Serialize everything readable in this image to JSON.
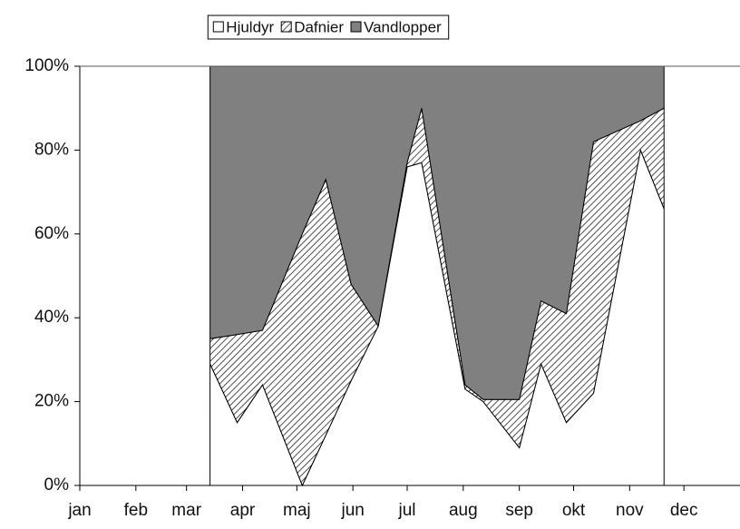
{
  "chart_data": {
    "type": "stacked_area",
    "x": [
      72,
      87,
      101,
      123,
      136,
      150,
      165,
      181,
      189,
      213,
      223,
      243,
      255,
      269,
      284,
      310,
      323
    ],
    "series": [
      {
        "name": "Hjuldyr",
        "color": "#ffffff",
        "values": [
          29,
          15,
          24,
          0,
          12,
          25,
          38,
          76,
          77,
          23,
          20,
          9,
          29,
          15,
          22,
          80,
          66
        ]
      },
      {
        "name": "Dafnier",
        "color": "#ffffff",
        "hatch": true,
        "values": [
          6,
          21,
          13,
          60,
          61,
          23,
          0,
          1,
          13,
          1,
          0.5,
          11.5,
          15,
          26,
          60,
          7,
          24
        ]
      },
      {
        "name": "Vandlopper",
        "color": "#808080",
        "values": [
          65,
          64,
          63,
          40,
          27,
          52,
          62,
          23,
          10,
          76,
          79.5,
          79.5,
          56,
          59,
          18,
          13,
          10
        ]
      }
    ],
    "xlim": [
      0,
      365
    ],
    "xticks": [
      {
        "value": 0,
        "label": "jan"
      },
      {
        "value": 31,
        "label": "feb"
      },
      {
        "value": 59,
        "label": "mar"
      },
      {
        "value": 90,
        "label": "apr"
      },
      {
        "value": 120,
        "label": "maj"
      },
      {
        "value": 151,
        "label": "jun"
      },
      {
        "value": 181,
        "label": "jul"
      },
      {
        "value": 212,
        "label": "aug"
      },
      {
        "value": 243,
        "label": "sep"
      },
      {
        "value": 273,
        "label": "okt"
      },
      {
        "value": 304,
        "label": "nov"
      },
      {
        "value": 334,
        "label": "dec"
      }
    ],
    "ylim": [
      0,
      100
    ],
    "yticks": [
      {
        "value": 0,
        "label": "0%"
      },
      {
        "value": 20,
        "label": "20%"
      },
      {
        "value": 40,
        "label": "40%"
      },
      {
        "value": 60,
        "label": "60%"
      },
      {
        "value": 80,
        "label": "80%"
      },
      {
        "value": 100,
        "label": "100%"
      }
    ],
    "legend": "top"
  }
}
